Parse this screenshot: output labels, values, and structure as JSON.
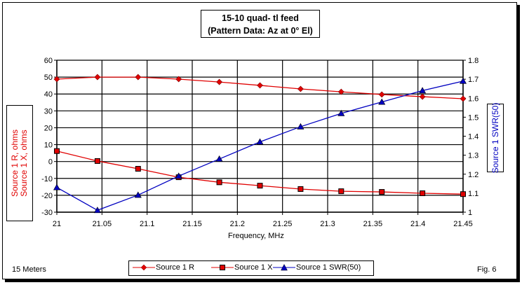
{
  "chart_data": {
    "type": "line",
    "title": "15-10 quad- tl feed",
    "subtitle": "(Pattern Data: Az at 0° El)",
    "xlabel": "Frequency, MHz",
    "ylabel_left": [
      "Source 1 R, ohms",
      "Source 1 X, ohms"
    ],
    "ylabel_right": "Source 1 SWR(50)",
    "xlim": [
      21,
      21.45
    ],
    "ylim_left": [
      -30,
      60
    ],
    "ylim_right": [
      1,
      1.8
    ],
    "x_ticks": [
      "21",
      "21.05",
      "21.1",
      "21.15",
      "21.2",
      "21.25",
      "21.3",
      "21.35",
      "21.4",
      "21.45"
    ],
    "y_ticks_left": [
      "60",
      "50",
      "40",
      "30",
      "20",
      "10",
      "0",
      "-10",
      "-20",
      "-30"
    ],
    "y_ticks_right": [
      "1.8",
      "1.7",
      "1.6",
      "1.5",
      "1.4",
      "1.3",
      "1.2",
      "1.1",
      "1"
    ],
    "grid": true,
    "legend_placement": "bottom",
    "x": [
      21.0,
      21.045,
      21.09,
      21.135,
      21.18,
      21.225,
      21.27,
      21.315,
      21.36,
      21.405,
      21.45
    ],
    "series": [
      {
        "name": "Source 1 R",
        "axis": "left",
        "marker": "diamond",
        "color": "#e00000",
        "values": [
          48.8,
          50.0,
          50.0,
          48.8,
          47.1,
          45.1,
          43.0,
          41.3,
          39.7,
          38.4,
          37.2
        ]
      },
      {
        "name": "Source 1 X",
        "axis": "left",
        "marker": "square",
        "color": "#e00000",
        "values": [
          6.2,
          0.3,
          -4.3,
          -9.3,
          -12.3,
          -14.3,
          -16.3,
          -17.6,
          -18.0,
          -18.8,
          -19.3
        ]
      },
      {
        "name": "Source 1 SWR(50)",
        "axis": "right",
        "marker": "triangle",
        "color": "#0000c0",
        "values": [
          1.13,
          1.01,
          1.09,
          1.19,
          1.28,
          1.37,
          1.45,
          1.52,
          1.58,
          1.64,
          1.69
        ]
      }
    ]
  },
  "notes": {
    "left": "15 Meters",
    "right": "Fig. 6"
  }
}
